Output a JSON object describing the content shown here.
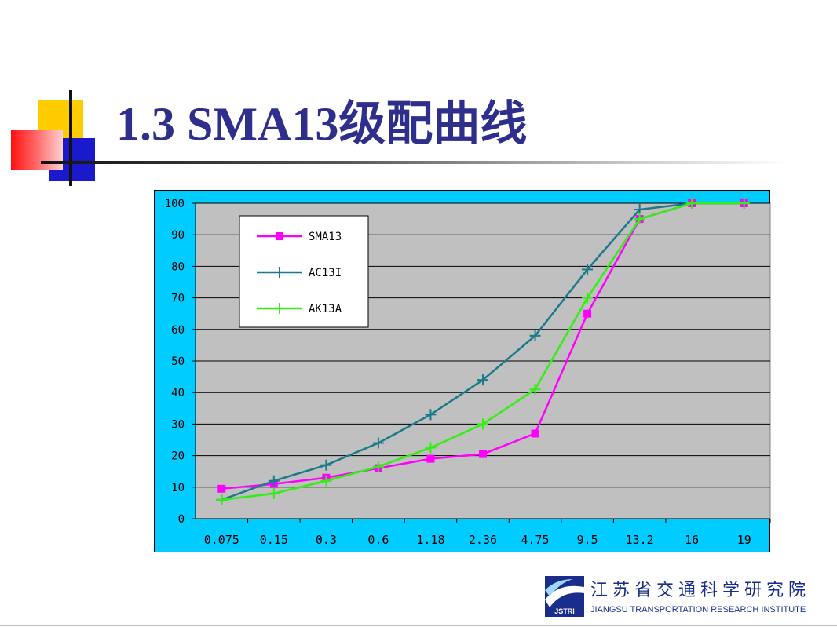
{
  "slide": {
    "title": "1.3  SMA13级配曲线"
  },
  "footer": {
    "logo_text": "JSTRI",
    "org_cn": "江苏省交通科学研究院",
    "org_en": "JIANGSU TRANSPORTATION RESEARCH INSTITUTE"
  },
  "colors": {
    "title": "#2e2e8c",
    "chart_frame": "#00ccff",
    "plot_area": "#c0c0c0",
    "SMA13": "#ff00ff",
    "AC13I": "#1a7a8c",
    "AK13A": "#33ee11"
  },
  "chart_data": {
    "type": "line",
    "title": "",
    "xlabel": "",
    "ylabel": "",
    "categories": [
      "0.075",
      "0.15",
      "0.3",
      "0.6",
      "1.18",
      "2.36",
      "4.75",
      "9.5",
      "13.2",
      "16",
      "19"
    ],
    "ylim": [
      0,
      100
    ],
    "yticks": [
      0,
      10,
      20,
      30,
      40,
      50,
      60,
      70,
      80,
      90,
      100
    ],
    "grid": "horizontal",
    "legend_position": "top-left",
    "series": [
      {
        "name": "SMA13",
        "marker": "square",
        "values": [
          9.5,
          11,
          13,
          16,
          19,
          20.5,
          27,
          65,
          95,
          100,
          100
        ]
      },
      {
        "name": "AC13I",
        "marker": "plus",
        "values": [
          6,
          12,
          17,
          24,
          33,
          44,
          58,
          79,
          98,
          100,
          100
        ]
      },
      {
        "name": "AK13A",
        "marker": "plus",
        "values": [
          6,
          8,
          12,
          16.5,
          22.5,
          30,
          41,
          70,
          95,
          100,
          100
        ]
      }
    ]
  }
}
